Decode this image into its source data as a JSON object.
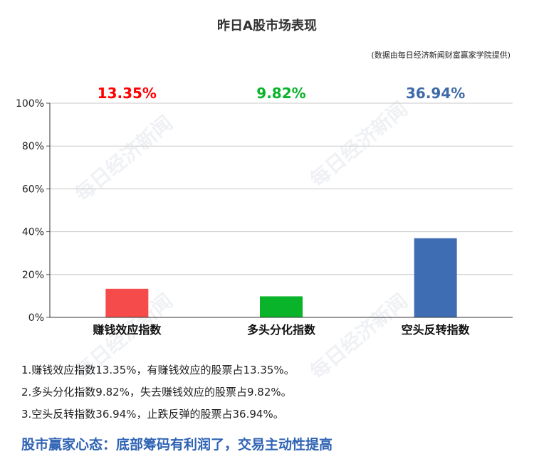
{
  "chart_data": {
    "type": "bar",
    "title": "昨日A股市场表现",
    "subtitle": "(数据由每日经济新闻财富赢家学院提供)",
    "categories": [
      "赚钱效应指数",
      "多头分化指数",
      "空头反转指数"
    ],
    "values": [
      13.35,
      9.82,
      36.94
    ],
    "value_labels": [
      "13.35%",
      "9.82%",
      "36.94%"
    ],
    "colors": [
      "#f54b4b",
      "#0ab42a",
      "#3f6db4"
    ],
    "label_colors": [
      "#ff0000",
      "#09b32b",
      "#3e6aa8"
    ],
    "ylim": [
      0,
      100
    ],
    "yticks": [
      0,
      20,
      40,
      60,
      80,
      100
    ],
    "ytick_labels": [
      "0%",
      "20%",
      "40%",
      "60%",
      "80%",
      "100%"
    ],
    "grid": true,
    "xlabel": "",
    "ylabel": ""
  },
  "watermark_text": "每日经济新闻",
  "notes": [
    "1.赚钱效应指数13.35%，有赚钱效应的股票占13.35%。",
    "2.多头分化指数9.82%，失去赚钱效应的股票占9.82%。",
    "3.空头反转指数36.94%，止跌反弹的股票占36.94%。"
  ],
  "headline": "股市赢家心态：底部筹码有利润了，交易主动性提高"
}
